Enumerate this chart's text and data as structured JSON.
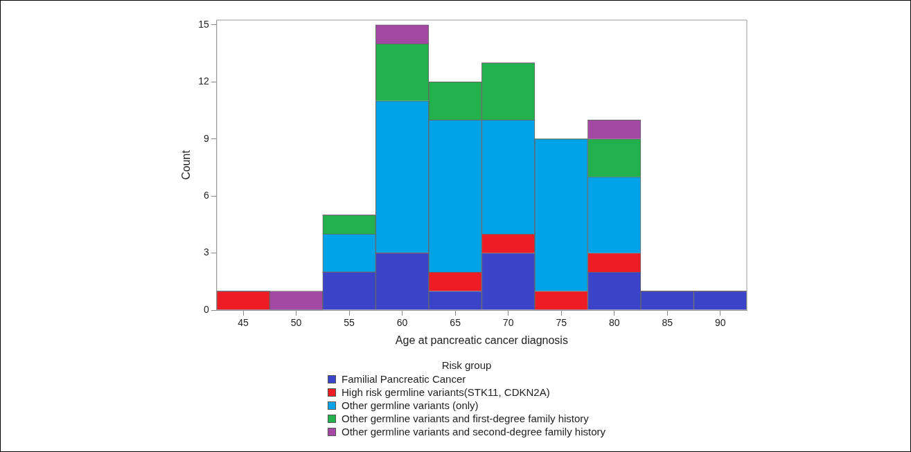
{
  "chart_data": {
    "type": "bar",
    "xlabel": "Age at pancreatic cancer diagnosis",
    "ylabel": "Count",
    "legend_title": "Risk group",
    "legend": "bottom",
    "stacked": true,
    "grid": false,
    "categories": [
      "45",
      "50",
      "55",
      "60",
      "65",
      "70",
      "75",
      "80",
      "85",
      "90"
    ],
    "ylim": [
      0,
      15.25
    ],
    "yticks": [
      0,
      3,
      6,
      9,
      12,
      15
    ],
    "series": [
      {
        "name": "Familial Pancreatic Cancer",
        "color": "#3b44c8",
        "values": [
          0,
          0,
          2,
          3,
          1,
          3,
          0,
          2,
          1,
          1
        ]
      },
      {
        "name": "High risk germline variants(STK11, CDKN2A)",
        "color": "#ee1c25",
        "values": [
          1,
          0,
          0,
          0,
          1,
          1,
          1,
          1,
          0,
          0
        ]
      },
      {
        "name": "Other germline variants (only)",
        "color": "#00a2e8",
        "values": [
          0,
          0,
          2,
          8,
          8,
          6,
          8,
          4,
          0,
          0
        ]
      },
      {
        "name": "Other germline variants and first-degree family history",
        "color": "#22b14c",
        "values": [
          0,
          0,
          1,
          3,
          2,
          3,
          0,
          2,
          0,
          0
        ]
      },
      {
        "name": "Other germline variants and second-degree family history",
        "color": "#a349a4",
        "values": [
          0,
          1,
          0,
          1,
          0,
          0,
          0,
          1,
          0,
          0
        ]
      }
    ]
  }
}
